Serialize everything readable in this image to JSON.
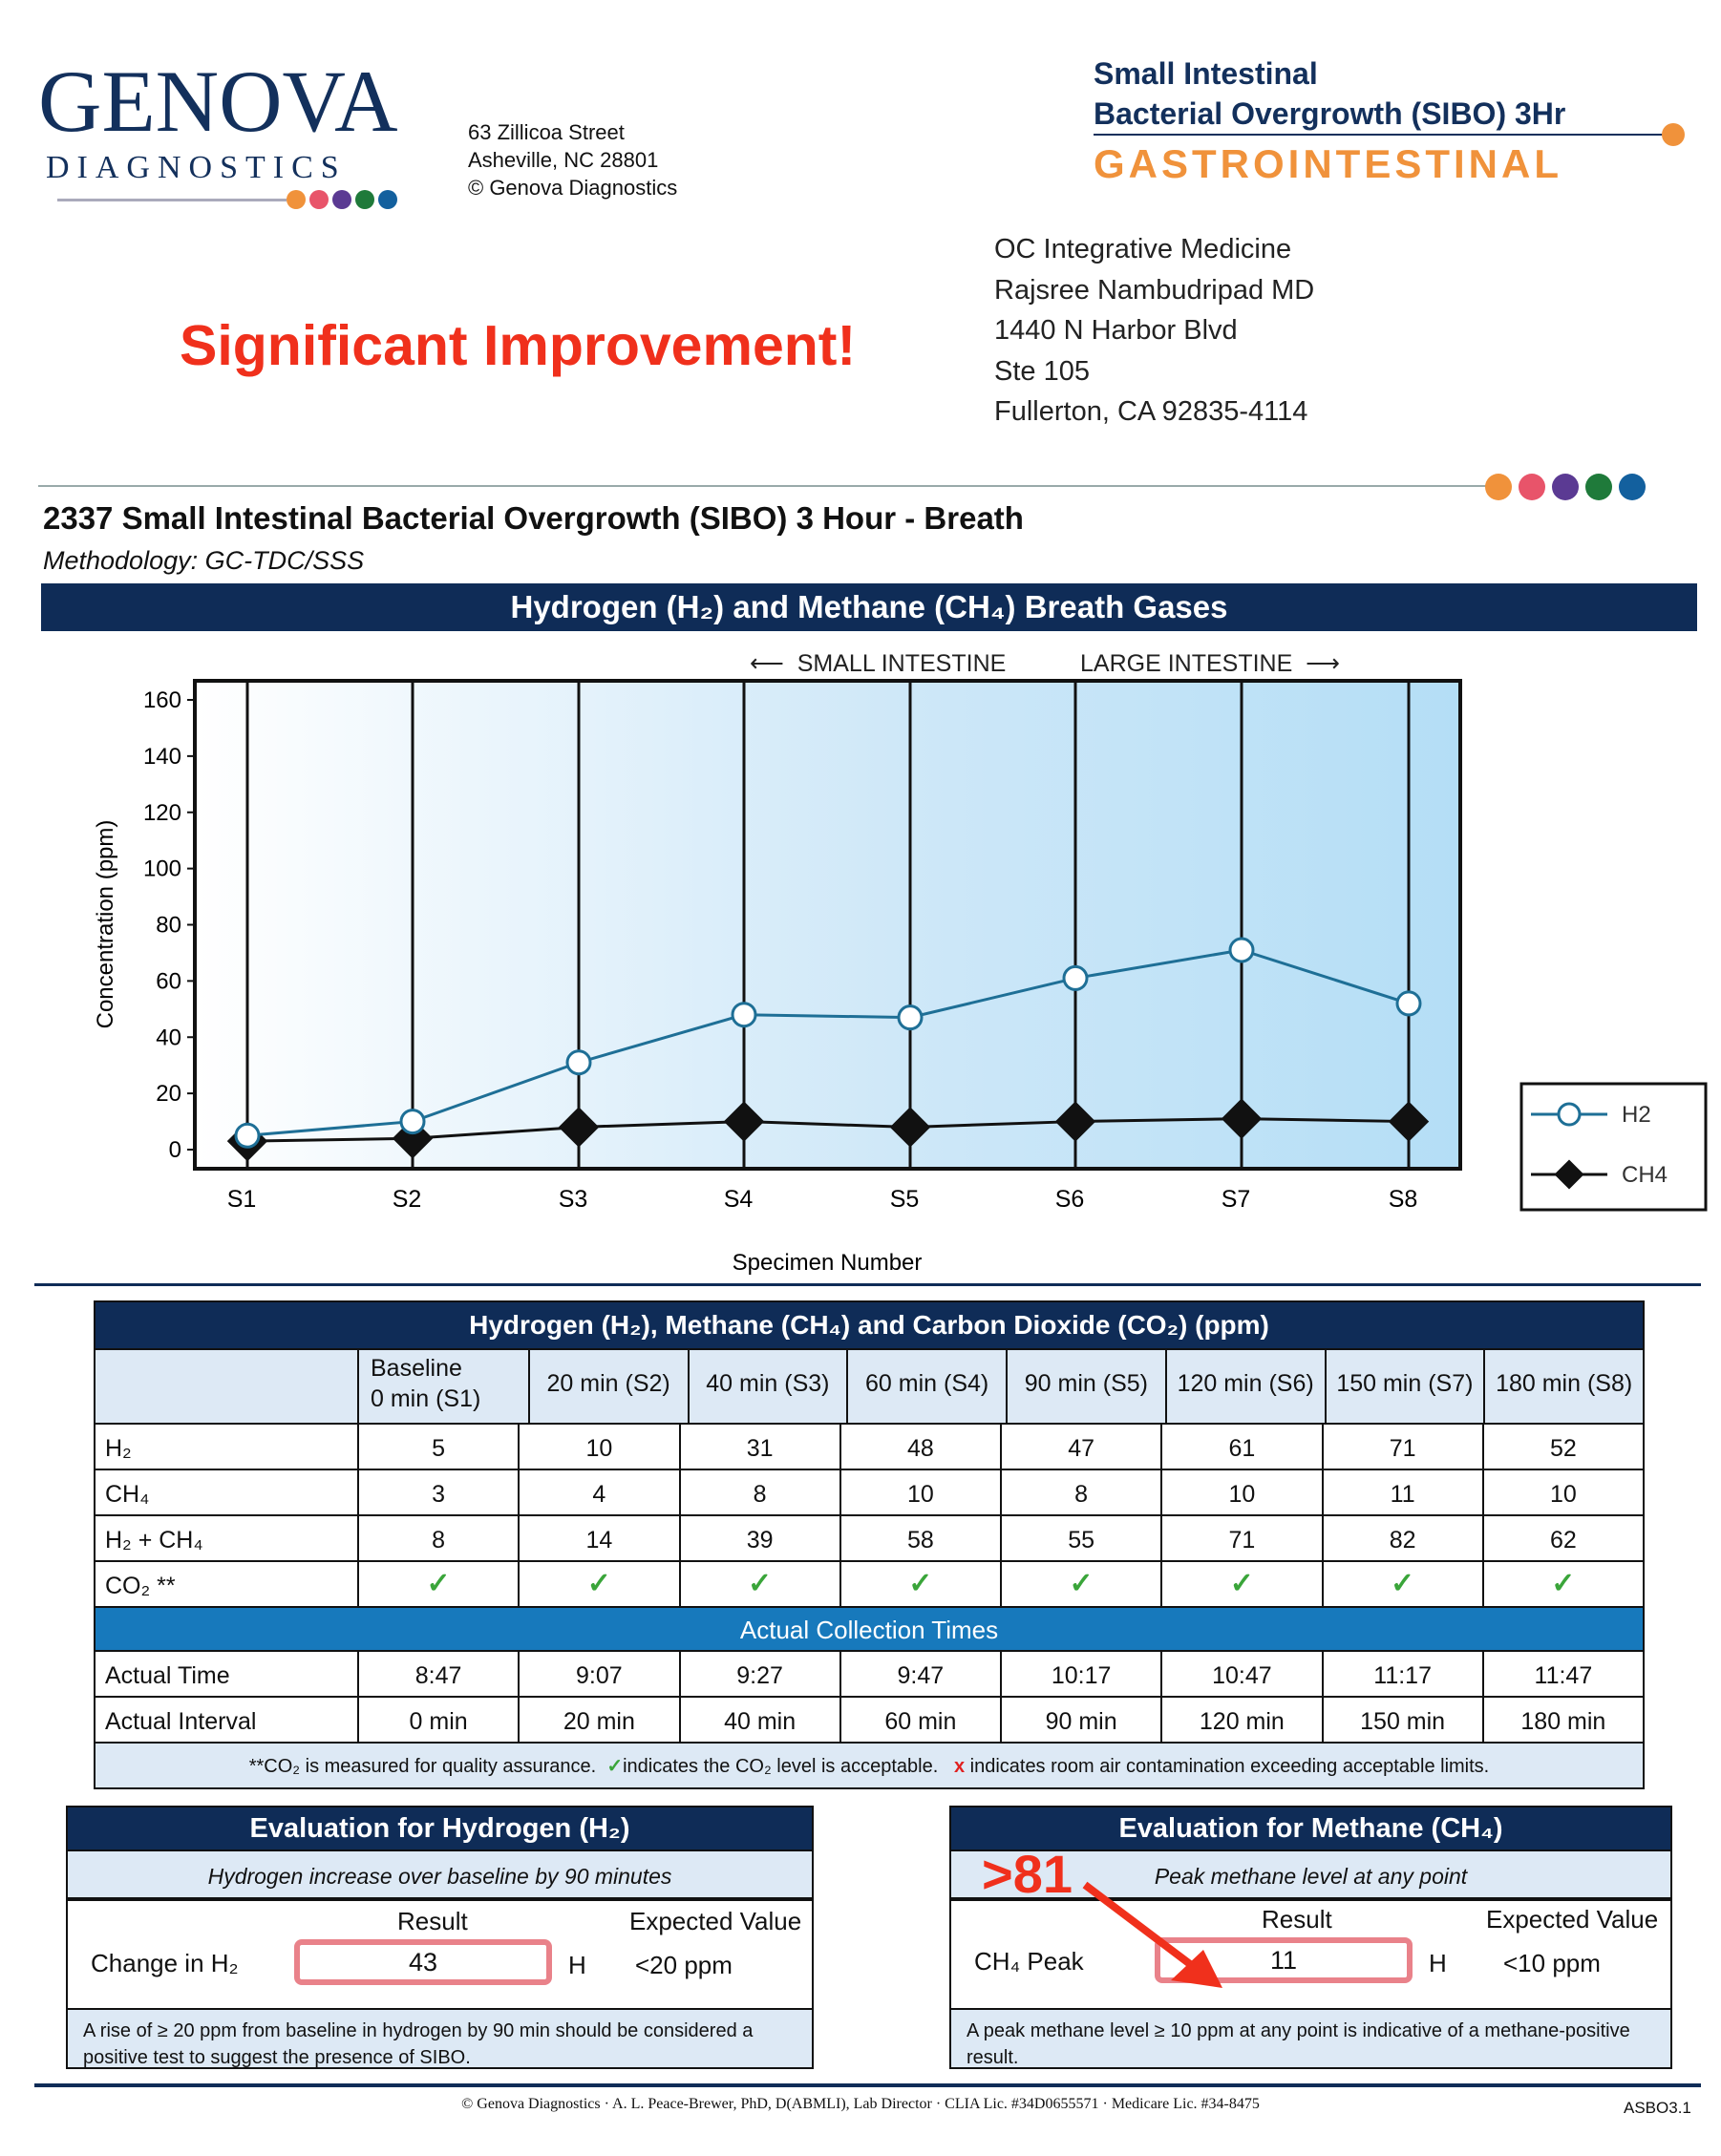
{
  "logo": {
    "name": "GENOVA",
    "sub": "DIAGNOSTICS",
    "dot_colors": [
      "#f0923b",
      "#e8546a",
      "#5b3a93",
      "#1f7a3a",
      "#13609e"
    ]
  },
  "lab_address": [
    "63 Zillicoa Street",
    "Asheville, NC  28801",
    "© Genova Diagnostics"
  ],
  "test_header": {
    "line1": "Small Intestinal",
    "line2": "Bacterial Overgrowth (SIBO) 3Hr",
    "category": "GASTROINTESTINAL"
  },
  "annotation": "Significant Improvement!",
  "recipient": [
    "OC Integrative Medicine",
    "Rajsree Nambudripad MD",
    "1440 N Harbor Blvd",
    "Ste 105",
    "Fullerton, CA  92835-4114"
  ],
  "report": {
    "title": "2337 Small Intestinal Bacterial Overgrowth (SIBO) 3 Hour - Breath",
    "methodology": "Methodology: GC-TDC/SSS"
  },
  "chart_section": {
    "title": "Hydrogen (H₂) and Methane (CH₄) Breath Gases",
    "small_intestine": "SMALL INTESTINE",
    "large_intestine": "LARGE INTESTINE"
  },
  "chart_data": {
    "type": "line",
    "title": "Hydrogen (H2) and Methane (CH4) Breath Gases",
    "xlabel": "Specimen Number",
    "ylabel": "Concentration (ppm)",
    "ylim": [
      0,
      160
    ],
    "yticks": [
      0,
      20,
      40,
      60,
      80,
      100,
      120,
      140,
      160
    ],
    "categories": [
      "S1",
      "S2",
      "S3",
      "S4",
      "S5",
      "S6",
      "S7",
      "S8"
    ],
    "series": [
      {
        "name": "H2",
        "values": [
          5,
          10,
          31,
          48,
          47,
          61,
          71,
          52
        ],
        "color": "#1e6f96"
      },
      {
        "name": "CH4",
        "values": [
          3,
          4,
          8,
          10,
          8,
          10,
          11,
          10
        ],
        "color": "#111111"
      }
    ],
    "legend": "right"
  },
  "table": {
    "title": "Hydrogen (H₂), Methane (CH₄) and Carbon Dioxide (CO₂) (ppm)",
    "columns": [
      [
        "Baseline",
        "0 min (S1)"
      ],
      [
        "",
        "20 min (S2)"
      ],
      [
        "",
        "40 min (S3)"
      ],
      [
        "",
        "60 min (S4)"
      ],
      [
        "",
        "90 min (S5)"
      ],
      [
        "",
        "120 min (S6)"
      ],
      [
        "",
        "150 min (S7)"
      ],
      [
        "",
        "180 min (S8)"
      ]
    ],
    "rows": [
      {
        "label": "H₂",
        "values": [
          "5",
          "10",
          "31",
          "48",
          "47",
          "61",
          "71",
          "52"
        ]
      },
      {
        "label": "CH₄",
        "values": [
          "3",
          "4",
          "8",
          "10",
          "8",
          "10",
          "11",
          "10"
        ]
      },
      {
        "label": "H₂ + CH₄",
        "values": [
          "8",
          "14",
          "39",
          "58",
          "55",
          "71",
          "82",
          "62"
        ]
      },
      {
        "label": "CO₂ **",
        "values": [
          "✓",
          "✓",
          "✓",
          "✓",
          "✓",
          "✓",
          "✓",
          "✓"
        ]
      }
    ],
    "times_title": "Actual Collection Times",
    "time_rows": [
      {
        "label": "Actual Time",
        "values": [
          "8:47",
          "9:07",
          "9:27",
          "9:47",
          "10:17",
          "10:47",
          "11:17",
          "11:47"
        ]
      },
      {
        "label": "Actual Interval",
        "values": [
          "0 min",
          "20 min",
          "40 min",
          "60 min",
          "90 min",
          "120 min",
          "150 min",
          "180 min"
        ]
      }
    ],
    "note": {
      "a": "**CO₂ is measured for quality assurance.",
      "check": "✓",
      "b": "indicates the CO₂ level is acceptable.",
      "x": "x",
      "c": "indicates room air contamination exceeding acceptable limits."
    }
  },
  "eval_h2": {
    "title": "Evaluation for Hydrogen (H₂)",
    "subtitle": "Hydrogen increase over baseline by 90 minutes",
    "result_label": "Result",
    "expected_label": "Expected Value",
    "row_label": "Change in H₂",
    "result": "43",
    "flag": "H",
    "expected": "<20 ppm",
    "footnote": "A rise of ≥ 20 ppm from baseline in hydrogen by 90 min should be considered a positive test to suggest the presence of SIBO."
  },
  "eval_ch4": {
    "title": "Evaluation for Methane (CH₄)",
    "previous": ">81",
    "subtitle": "Peak methane level at any point",
    "result_label": "Result",
    "expected_label": "Expected Value",
    "row_label": "CH₄ Peak",
    "result": "11",
    "flag": "H",
    "expected": "<10 ppm",
    "footnote": "A peak methane level ≥ 10 ppm at any point is indicative of a methane-positive result."
  },
  "footer": {
    "text": "© Genova Diagnostics · A. L. Peace-Brewer, PhD, D(ABMLI), Lab Director · CLIA Lic. #34D0655571 · Medicare Lic. #34-8475",
    "version": "ASBO3.1"
  }
}
